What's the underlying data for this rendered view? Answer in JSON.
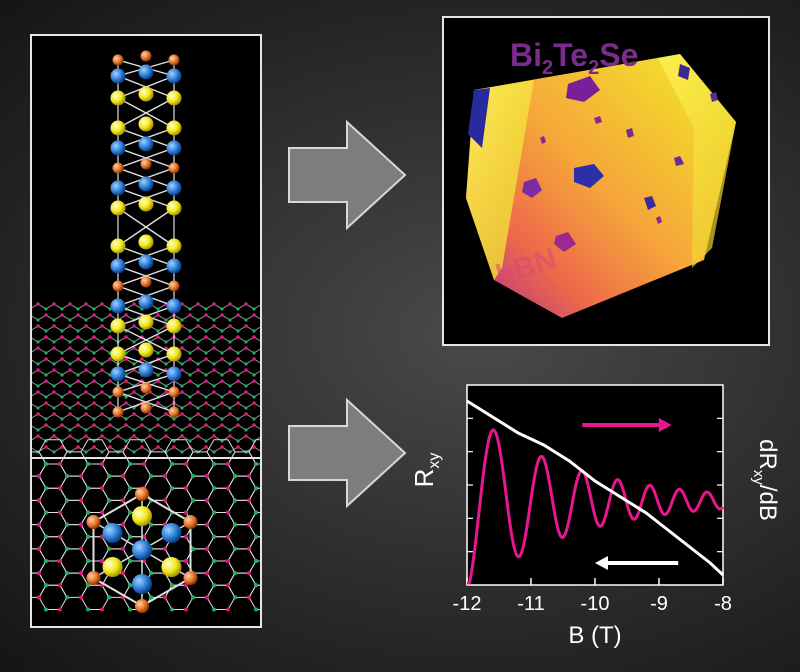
{
  "afm": {
    "material_main": "Bi",
    "sub1": "2",
    "material_mid": "Te",
    "sub2": "2",
    "material_end": "Se",
    "substrate_label": "hBN"
  },
  "colors": {
    "background": "#2c2c2c",
    "panel_border": "#e6e6e6",
    "arrow_fill": "#7d7d7d",
    "arrow_stroke": "#d8d8d8",
    "bi": "#2f7fd8",
    "te": "#f2e81e",
    "se": "#e8742a",
    "bond": "#e0e0e0",
    "hbn_b": "#e0157f",
    "hbn_n": "#1fae5b",
    "rxy_curve": "#e8168c",
    "deriv_curve": "#ffffff",
    "afm_low": "#7b1fa2",
    "afm_high": "#f5f01e",
    "title_purple": "#7a2c8e"
  },
  "chart_data": {
    "type": "line",
    "xlabel": "B (T)",
    "ylabel_left": "R",
    "ylabel_left_sub": "xy",
    "ylabel_right_pre": "dR",
    "ylabel_right_sub": "xy",
    "ylabel_right_post": "/dB",
    "xlim": [
      -12,
      -8
    ],
    "x_ticks": [
      -12,
      -11,
      -10,
      -9,
      -8
    ],
    "x_tick_labels": [
      "-12",
      "-11",
      "-10",
      "-9",
      "-8"
    ],
    "ylim": [
      0,
      1
    ],
    "series": [
      {
        "id": "rxy",
        "color": "#ffffff",
        "x": [
          -12.0,
          -11.8,
          -11.6,
          -11.4,
          -11.2,
          -11.0,
          -10.8,
          -10.6,
          -10.4,
          -10.2,
          -10.0,
          -9.8,
          -9.6,
          -9.4,
          -9.2,
          -9.0,
          -8.8,
          -8.6,
          -8.4,
          -8.2,
          -8.0
        ],
        "y": [
          0.92,
          0.88,
          0.84,
          0.8,
          0.76,
          0.73,
          0.7,
          0.66,
          0.62,
          0.57,
          0.52,
          0.48,
          0.44,
          0.4,
          0.36,
          0.31,
          0.26,
          0.21,
          0.16,
          0.11,
          0.05
        ]
      },
      {
        "id": "deriv",
        "color": "#e8168c",
        "x_start": -12.0,
        "x_end": -8.0
      }
    ],
    "annotations": [
      {
        "type": "arrow",
        "direction": "right",
        "color": "#e8168c",
        "x_from": -10.2,
        "x_to": -8.8,
        "y": 0.8
      },
      {
        "type": "arrow",
        "direction": "left",
        "color": "#ffffff",
        "x_from": -8.7,
        "x_to": -10.0,
        "y": 0.11
      }
    ]
  }
}
